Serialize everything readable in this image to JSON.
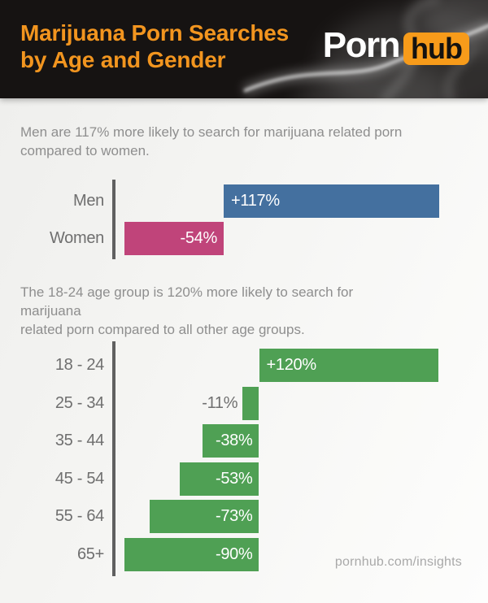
{
  "header": {
    "title": "Marijuana Porn Searches\nby Age and Gender",
    "logo": {
      "word1": "Porn",
      "word2": "hub"
    }
  },
  "sections": {
    "gender_intro": "Men are 117% more likely to search for marijuana related porn\ncompared to women.",
    "age_intro": "The 18-24 age group is 120% more likely to search for marijuana\nrelated porn compared to all other age groups."
  },
  "footer": {
    "site": "pornhub.com/insights"
  },
  "colors": {
    "header_bg": "#161312",
    "title_orange": "#f2951f",
    "logo_orange": "#f79b1a",
    "bar_blue": "#44709f",
    "bar_pink": "#c0447a",
    "bar_green": "#4fa054",
    "axis_gray": "#606060",
    "body_text_gray": "#8e8e8e",
    "chart_label_gray": "#6f6f6f",
    "footer_gray": "#a9a9a9"
  },
  "chart_data": [
    {
      "type": "bar",
      "orientation": "horizontal_diverging",
      "title": "",
      "categories": [
        "Men",
        "Women"
      ],
      "values": [
        117,
        -54
      ],
      "value_labels": [
        "+117%",
        "-54%"
      ],
      "unit": "%",
      "baseline": 0,
      "xlim": [
        -60,
        120
      ],
      "grid": false,
      "legend": "none",
      "bar_colors": [
        "#44709f",
        "#c0447a"
      ]
    },
    {
      "type": "bar",
      "orientation": "horizontal_diverging",
      "title": "",
      "categories": [
        "18 - 24",
        "25 - 34",
        "35 - 44",
        "45 - 54",
        "55 - 64",
        "65+"
      ],
      "values": [
        120,
        -11,
        -38,
        -53,
        -73,
        -90
      ],
      "value_labels": [
        "+120%",
        "-11%",
        "-38%",
        "-53%",
        "-73%",
        "-90%"
      ],
      "unit": "%",
      "baseline": 0,
      "xlim": [
        -100,
        125
      ],
      "grid": false,
      "legend": "none",
      "bar_colors": [
        "#4fa054"
      ]
    }
  ]
}
